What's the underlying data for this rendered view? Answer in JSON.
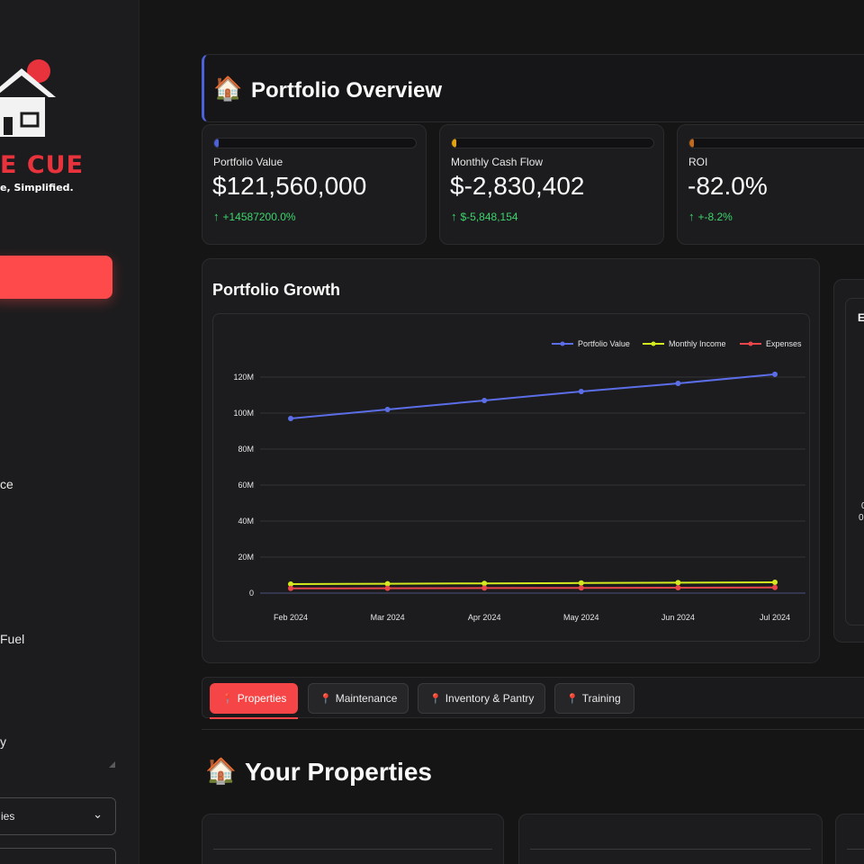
{
  "logo": {
    "text": "E CUE",
    "tagline": "e, Simplified."
  },
  "sidebar": {
    "items": [
      "ce",
      "Fuel",
      "y"
    ],
    "selects": [
      {
        "label": "ies"
      },
      {
        "label": ""
      }
    ]
  },
  "overview": {
    "icon": "🏠",
    "title": "Portfolio Overview"
  },
  "metrics": [
    {
      "label": "Portfolio Value",
      "value": "$121,560,000",
      "delta_arrow": "↑",
      "delta": "+14587200.0%",
      "accent": "#4b62d9"
    },
    {
      "label": "Monthly Cash Flow",
      "value": "$-2,830,402",
      "delta_arrow": "↑",
      "delta": "$-5,848,154",
      "accent": "#e5a50a"
    },
    {
      "label": "ROI",
      "value": "-82.0%",
      "delta_arrow": "↑",
      "delta": "+-8.2%",
      "accent": "#c26a1a"
    }
  ],
  "growth": {
    "title": "Portfolio Growth"
  },
  "side_card": {
    "letter": "E",
    "frag1": "0",
    "frag2": "0."
  },
  "tabs": [
    {
      "label": "Properties",
      "active": true
    },
    {
      "label": "Maintenance",
      "active": false
    },
    {
      "label": "Inventory & Pantry",
      "active": false
    },
    {
      "label": "Training",
      "active": false
    }
  ],
  "properties": {
    "icon": "🏠",
    "title": "Your Properties"
  },
  "chart_data": {
    "type": "line",
    "title": "Portfolio Growth",
    "categories": [
      "Feb 2024",
      "Mar 2024",
      "Apr 2024",
      "May 2024",
      "Jun 2024",
      "Jul 2024"
    ],
    "y_ticks": [
      "0",
      "20M",
      "40M",
      "60M",
      "80M",
      "100M",
      "120M"
    ],
    "ylim": [
      0,
      120000000
    ],
    "grid": true,
    "legend_position": "top-right",
    "series": [
      {
        "name": "Portfolio Value",
        "color": "#5b6ee8",
        "values": [
          97000000,
          102000000,
          107000000,
          112000000,
          116500000,
          121560000
        ]
      },
      {
        "name": "Monthly Income",
        "color": "#d4ea1e",
        "values": [
          5000000,
          5200000,
          5400000,
          5600000,
          5800000,
          6000000
        ]
      },
      {
        "name": "Expenses",
        "color": "#e8464a",
        "values": [
          2600000,
          2700000,
          2800000,
          2900000,
          3000000,
          3100000
        ]
      }
    ]
  }
}
